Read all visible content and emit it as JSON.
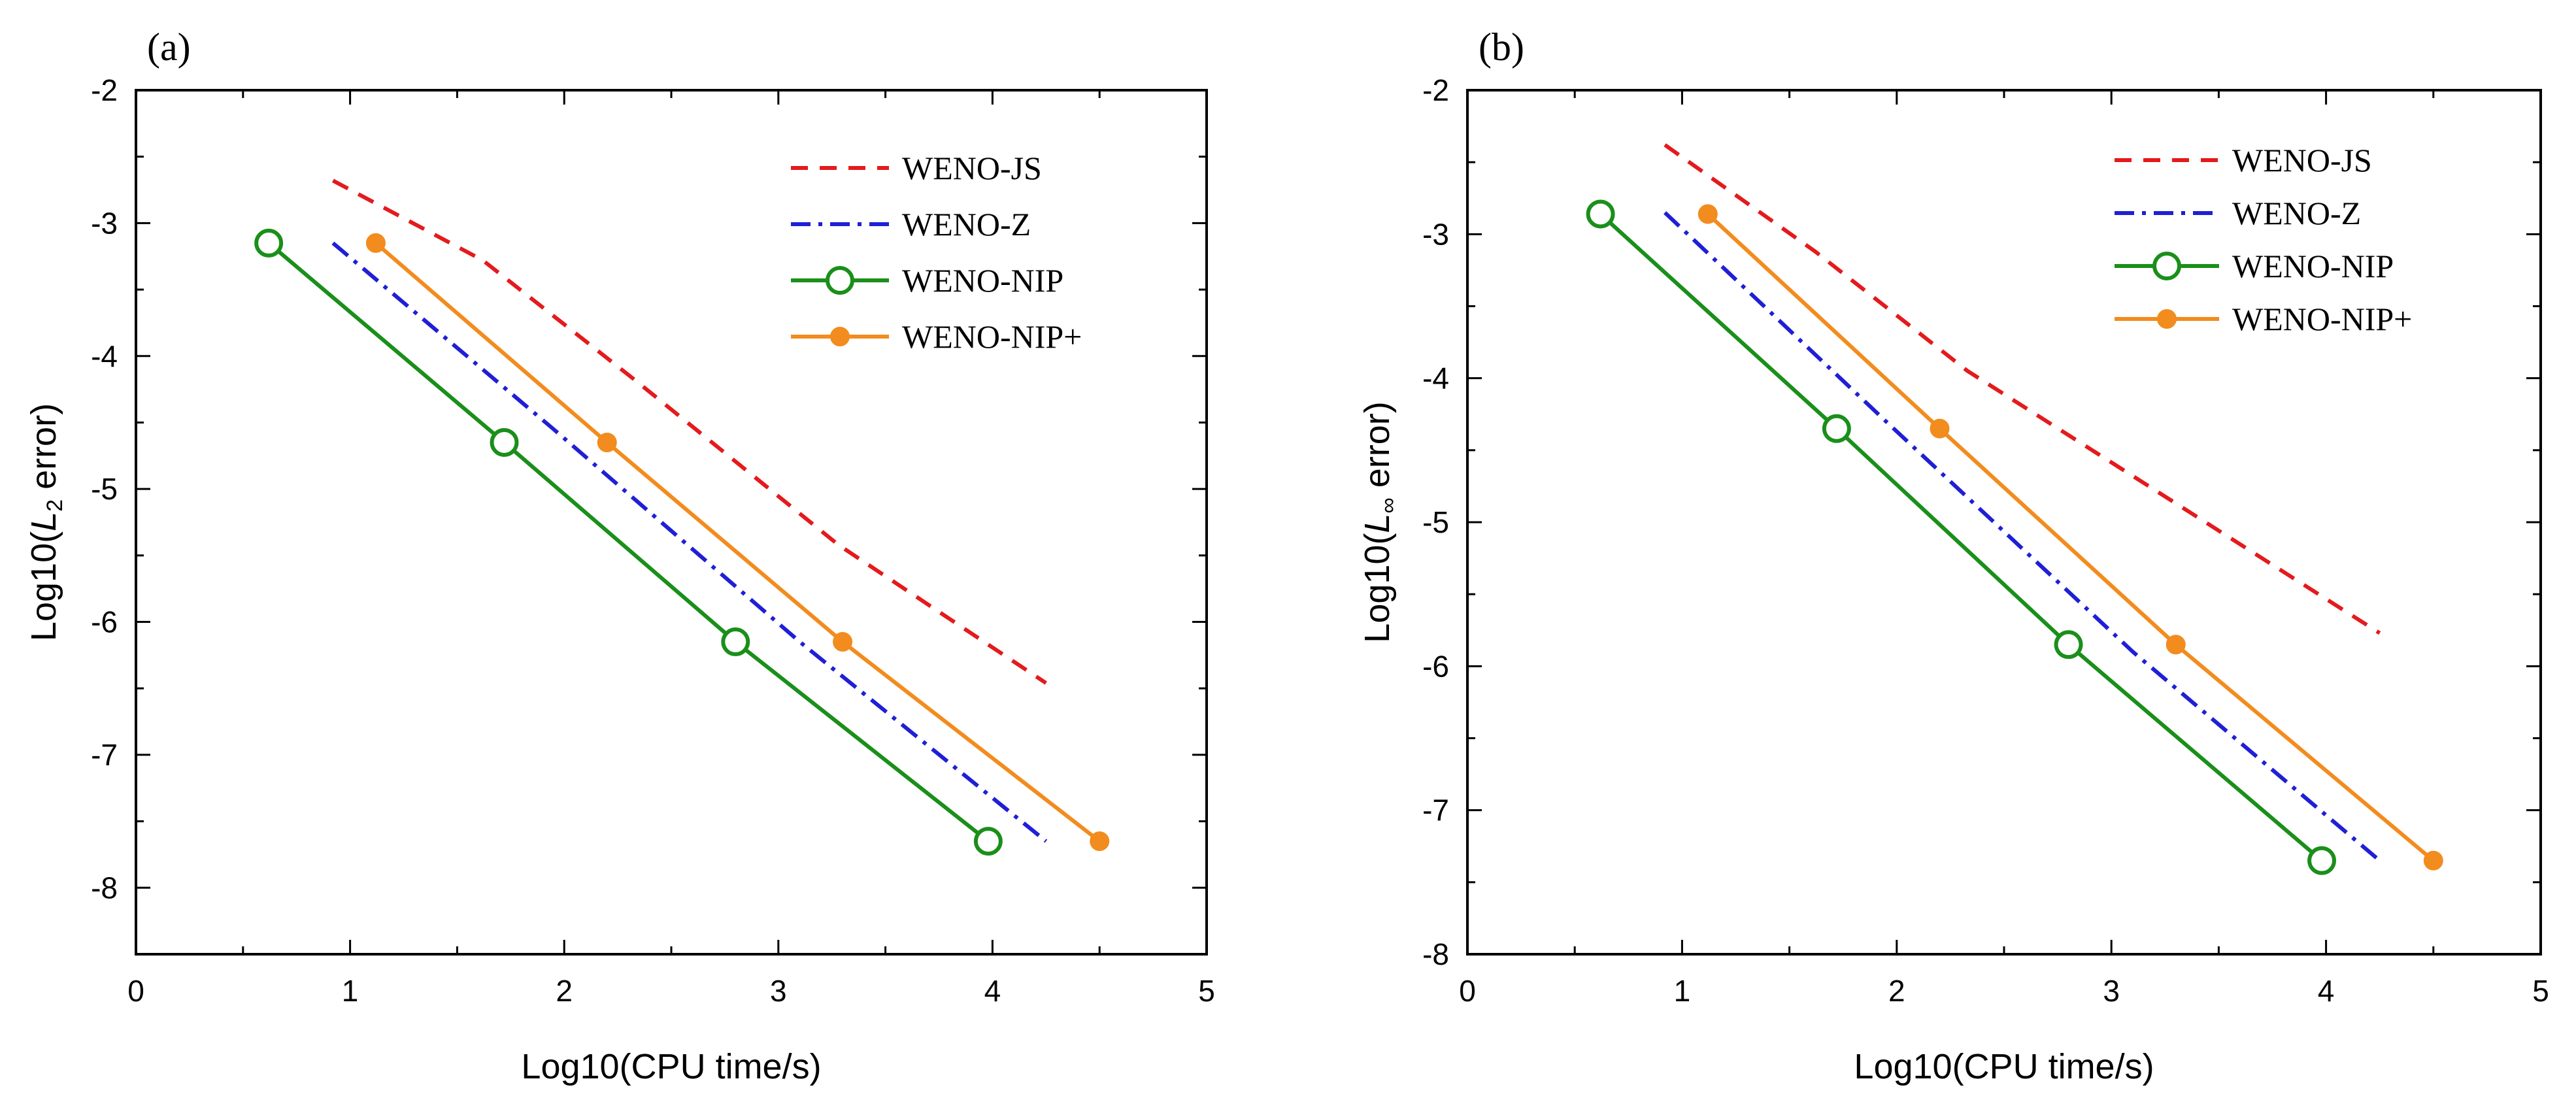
{
  "chart_data": [
    {
      "type": "line",
      "panel_label": "(a)",
      "xlabel": "Log10(CPU time/s)",
      "ylabel_prefix": "Log10(",
      "ylabel_L": "L",
      "ylabel_sub": "2",
      "ylabel_suffix": " error)",
      "xlim": [
        0,
        5
      ],
      "ylim": [
        -8.5,
        -2
      ],
      "xticks": [
        0,
        1,
        2,
        3,
        4,
        5
      ],
      "yticks": [
        -8,
        -7,
        -6,
        -5,
        -4,
        -3,
        -2
      ],
      "grid": false,
      "legend_position": "top-right",
      "series": [
        {
          "name": "WENO-JS",
          "color": "#e41a1c",
          "style": "dashed",
          "marker": "none",
          "x": [
            0.92,
            1.62,
            2.33,
            3.28,
            4.25
          ],
          "y": [
            -2.68,
            -3.28,
            -4.18,
            -5.42,
            -6.46
          ]
        },
        {
          "name": "WENO-Z",
          "color": "#1f1fd6",
          "style": "dashdot",
          "marker": "none",
          "x": [
            0.92,
            1.95,
            3.1,
            4.25
          ],
          "y": [
            -3.15,
            -4.55,
            -6.15,
            -7.65
          ]
        },
        {
          "name": "WENO-NIP",
          "color": "#1a8f1a",
          "style": "solid",
          "marker": "open-circle",
          "x": [
            0.62,
            1.72,
            2.8,
            3.98
          ],
          "y": [
            -3.15,
            -4.65,
            -6.15,
            -7.65
          ]
        },
        {
          "name": "WENO-NIP+",
          "color": "#f28c1e",
          "style": "solid",
          "marker": "filled-circle",
          "x": [
            1.12,
            2.2,
            3.3,
            4.5
          ],
          "y": [
            -3.15,
            -4.65,
            -6.15,
            -7.65
          ]
        }
      ]
    },
    {
      "type": "line",
      "panel_label": "(b)",
      "xlabel": "Log10(CPU time/s)",
      "ylabel_prefix": "Log10(",
      "ylabel_L": "L",
      "ylabel_sub": "∞",
      "ylabel_suffix": " error)",
      "xlim": [
        0,
        5
      ],
      "ylim": [
        -8,
        -2
      ],
      "xticks": [
        0,
        1,
        2,
        3,
        4,
        5
      ],
      "yticks": [
        -8,
        -7,
        -6,
        -5,
        -4,
        -3,
        -2
      ],
      "grid": false,
      "legend_position": "top-right",
      "series": [
        {
          "name": "WENO-JS",
          "color": "#e41a1c",
          "style": "dashed",
          "marker": "none",
          "x": [
            0.92,
            1.62,
            2.33,
            3.28,
            4.25
          ],
          "y": [
            -2.38,
            -3.12,
            -3.95,
            -4.85,
            -5.77
          ]
        },
        {
          "name": "WENO-Z",
          "color": "#1f1fd6",
          "style": "dashdot",
          "marker": "none",
          "x": [
            0.92,
            1.95,
            3.1,
            4.25
          ],
          "y": [
            -2.85,
            -4.3,
            -5.9,
            -7.35
          ]
        },
        {
          "name": "WENO-NIP",
          "color": "#1a8f1a",
          "style": "solid",
          "marker": "open-circle",
          "x": [
            0.62,
            1.72,
            2.8,
            3.98
          ],
          "y": [
            -2.86,
            -4.35,
            -5.85,
            -7.35
          ]
        },
        {
          "name": "WENO-NIP+",
          "color": "#f28c1e",
          "style": "solid",
          "marker": "filled-circle",
          "x": [
            1.12,
            2.2,
            3.3,
            4.5
          ],
          "y": [
            -2.86,
            -4.35,
            -5.85,
            -7.35
          ]
        }
      ]
    }
  ]
}
